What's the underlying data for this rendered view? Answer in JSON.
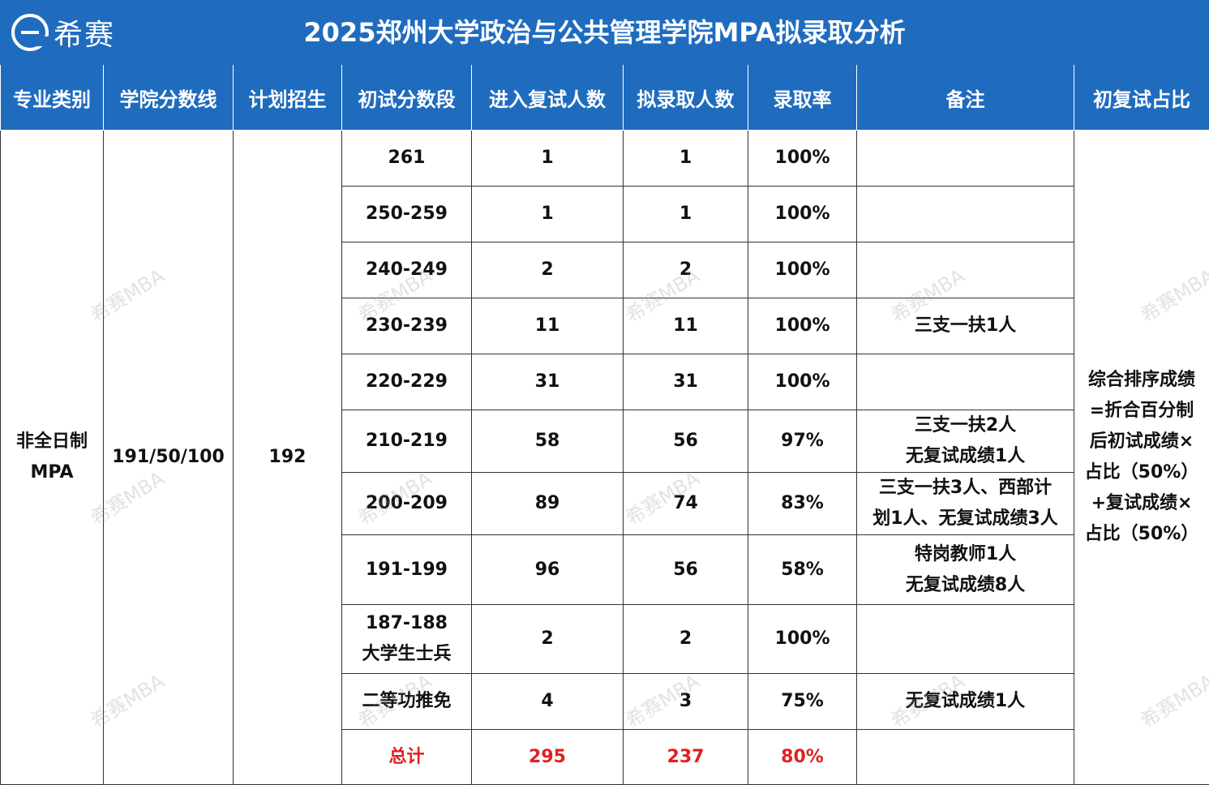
{
  "header": {
    "logo_text": "希赛",
    "title": "2025郑州大学政治与公共管理学院MPA拟录取分析"
  },
  "columns": [
    "专业类别",
    "学院分数线",
    "计划招生",
    "初试分数段",
    "进入复试人数",
    "拟录取人数",
    "录取率",
    "备注",
    "初复试占比"
  ],
  "major_line1": "非全日制",
  "major_line2": "MPA",
  "cutoff": "191/50/100",
  "plan": "192",
  "ratio_lines": [
    "综合排序成绩",
    "=折合百分制",
    "后初试成绩×",
    "占比（50%）",
    "+复试成绩×",
    "占比（50%）"
  ],
  "rows": [
    {
      "range": "261",
      "retest": "1",
      "admit": "1",
      "rate": "100%",
      "note1": "",
      "note2": ""
    },
    {
      "range": "250-259",
      "retest": "1",
      "admit": "1",
      "rate": "100%",
      "note1": "",
      "note2": ""
    },
    {
      "range": "240-249",
      "retest": "2",
      "admit": "2",
      "rate": "100%",
      "note1": "",
      "note2": ""
    },
    {
      "range": "230-239",
      "retest": "11",
      "admit": "11",
      "rate": "100%",
      "note1": "三支一扶1人",
      "note2": ""
    },
    {
      "range": "220-229",
      "retest": "31",
      "admit": "31",
      "rate": "100%",
      "note1": "",
      "note2": ""
    },
    {
      "range": "210-219",
      "retest": "58",
      "admit": "56",
      "rate": "97%",
      "note1": "三支一扶2人",
      "note2": "无复试成绩1人"
    },
    {
      "range": "200-209",
      "retest": "89",
      "admit": "74",
      "rate": "83%",
      "note1": "三支一扶3人、西部计",
      "note2": "划1人、无复试成绩3人"
    },
    {
      "range": "191-199",
      "retest": "96",
      "admit": "56",
      "rate": "58%",
      "note1": "特岗教师1人",
      "note2": "无复试成绩8人"
    },
    {
      "range": "187-188",
      "range2": "大学生士兵",
      "retest": "2",
      "admit": "2",
      "rate": "100%",
      "note1": "",
      "note2": ""
    },
    {
      "range": "二等功推免",
      "retest": "4",
      "admit": "3",
      "rate": "75%",
      "note1": "无复试成绩1人",
      "note2": ""
    }
  ],
  "total": {
    "label": "总计",
    "retest": "295",
    "admit": "237",
    "rate": "80%"
  },
  "watermark_text": "希赛MBA",
  "colors": {
    "header_bg": "#1f6cbf",
    "total_text": "#e02020"
  }
}
